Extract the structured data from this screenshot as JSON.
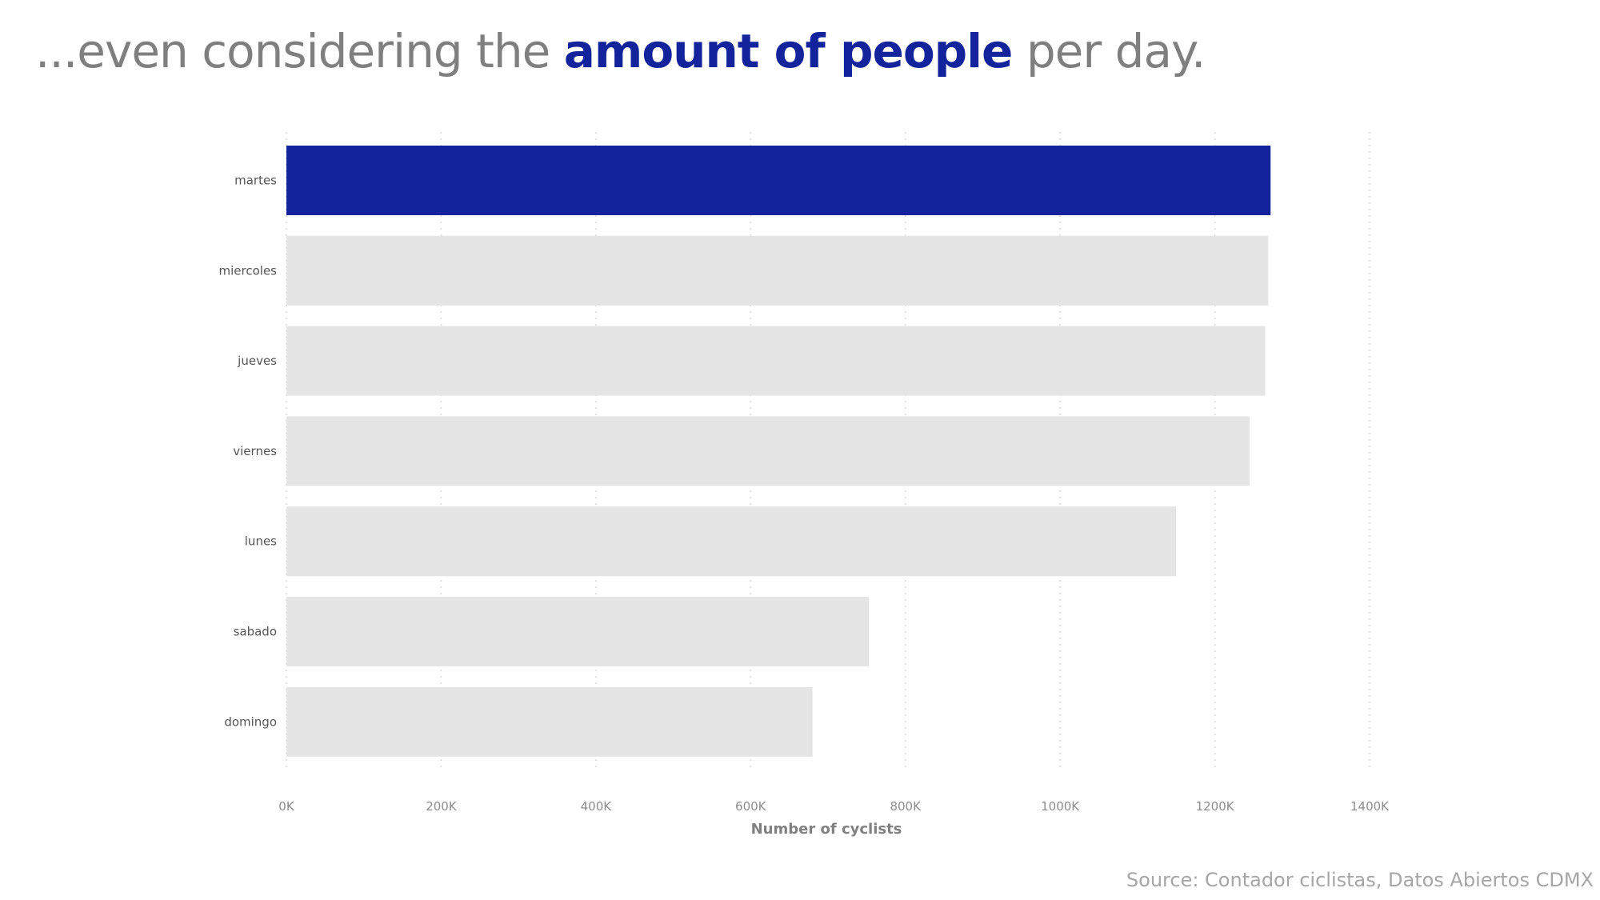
{
  "title": {
    "prefix": "...even considering the ",
    "emphasis": "amount of people",
    "suffix": " per day."
  },
  "source": "Source: Contador ciclistas, Datos Abiertos CDMX",
  "colors": {
    "highlight": "#13239b",
    "bar": "#e5e5e5",
    "title": "#7f7f7f",
    "grid": "#d9d9d9",
    "tick_text": "#8c8c8c"
  },
  "chart_data": {
    "type": "bar",
    "orientation": "horizontal",
    "categories": [
      "martes",
      "miercoles",
      "jueves",
      "viernes",
      "lunes",
      "sabado",
      "domingo"
    ],
    "values": [
      1272000,
      1269000,
      1265000,
      1245000,
      1150000,
      753000,
      680000
    ],
    "highlighted_category": "martes",
    "xlabel": "Number of cyclists",
    "ylabel": "",
    "xlim": [
      0,
      1400000
    ],
    "x_ticks": [
      0,
      200000,
      400000,
      600000,
      800000,
      1000000,
      1200000,
      1400000
    ],
    "x_tick_labels": [
      "0K",
      "200K",
      "400K",
      "600K",
      "800K",
      "1000K",
      "1200K",
      "1400K"
    ],
    "grid": "vertical dotted"
  }
}
